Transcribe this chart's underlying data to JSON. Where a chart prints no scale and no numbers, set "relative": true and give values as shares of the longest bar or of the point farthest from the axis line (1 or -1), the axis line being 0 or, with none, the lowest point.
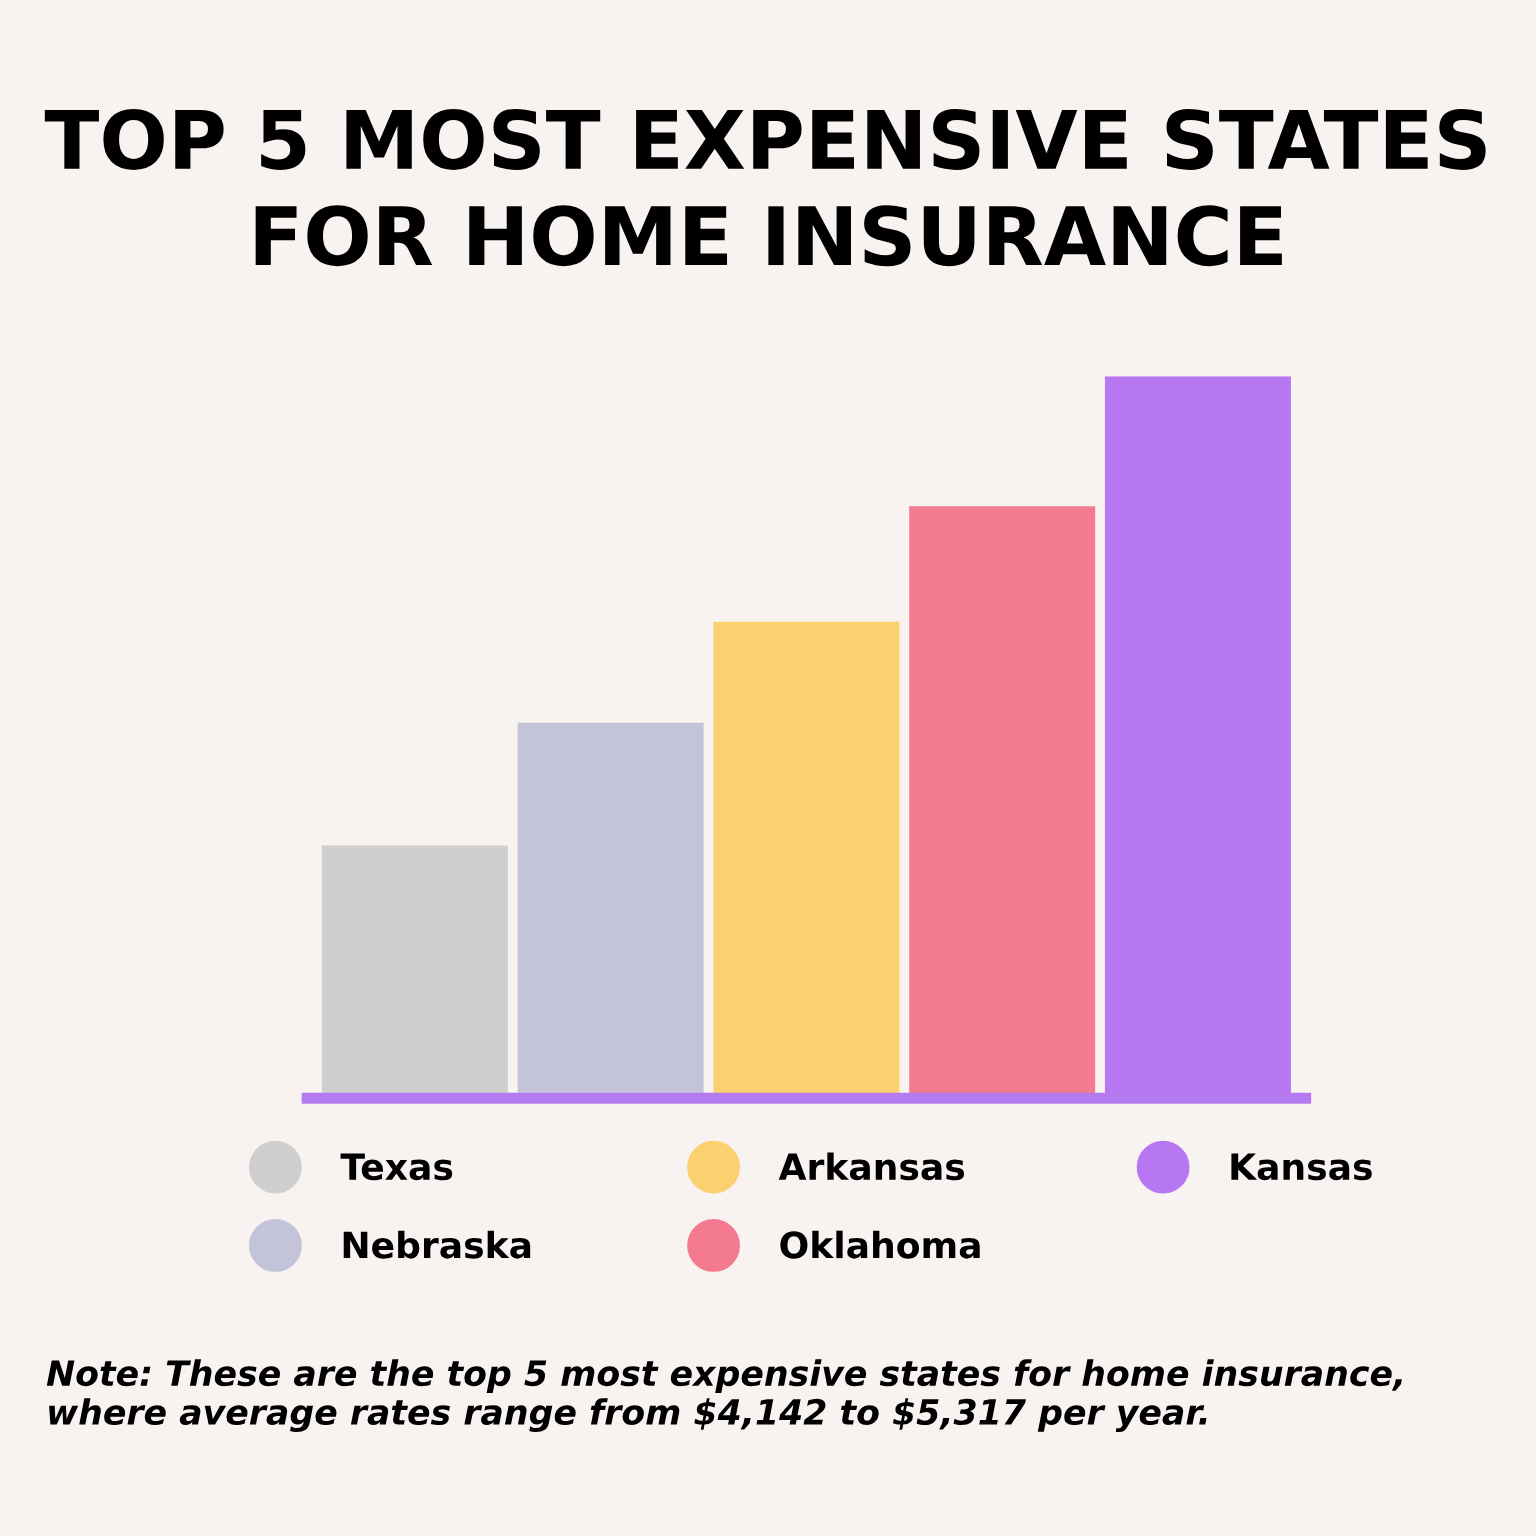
{
  "chart_data": {
    "type": "bar",
    "title": "TOP 5 MOST EXPENSIVE STATES\nFOR HOME INSURANCE",
    "categories": [
      null,
      null,
      null,
      null,
      null
    ],
    "series": [
      {
        "name": "Texas",
        "color": "#d0cfcf",
        "values": [
          0.35,
          null,
          null,
          null,
          null
        ]
      },
      {
        "name": "Nebraska",
        "color": "#c3c3d9",
        "values": [
          null,
          0.52,
          null,
          null,
          null
        ]
      },
      {
        "name": "Arkansas",
        "color": "#fbd06f",
        "values": [
          null,
          null,
          0.66,
          null,
          null
        ]
      },
      {
        "name": "Oklahoma",
        "color": "#f47a90",
        "values": [
          null,
          null,
          null,
          0.82,
          null
        ]
      },
      {
        "name": "Kansas",
        "color": "#b877f2",
        "values": [
          null,
          null,
          null,
          null,
          1
        ]
      }
    ],
    "relative": true,
    "stacked": true,
    "legend": "bottom",
    "grid": false,
    "annotations": [
      "Note: These are the top 5 most expensive states for home insurance, where average rates range from $4,142 to $5,317 per year."
    ]
  }
}
